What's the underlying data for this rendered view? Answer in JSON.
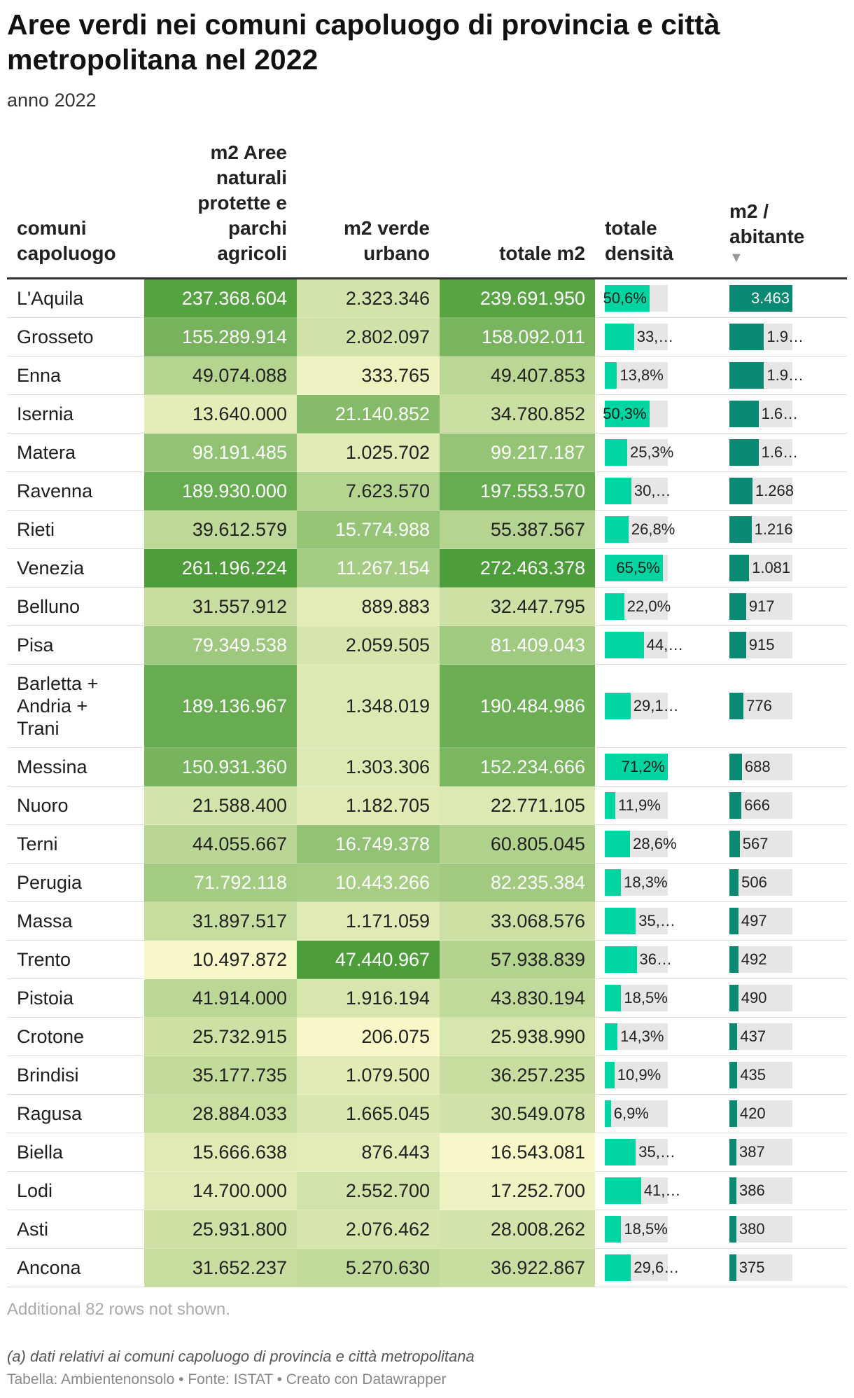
{
  "title": "Aree verdi nei comuni capoluogo di provincia e città metropolitana nel 2022",
  "subtitle": "anno 2022",
  "chart_data": {
    "type": "table",
    "columns": [
      {
        "key": "name",
        "label": "comuni capoluogo"
      },
      {
        "key": "aree",
        "label": "m2 Aree naturali protette e parchi agricoli"
      },
      {
        "key": "verde",
        "label": "m2 verde urbano"
      },
      {
        "key": "totale",
        "label": "totale m2"
      },
      {
        "key": "densita",
        "label": "totale densità"
      },
      {
        "key": "abitante",
        "label": "m2 / abitante",
        "sort": "▼"
      }
    ],
    "max_abitante": 3463,
    "max_densita": 100,
    "rows": [
      {
        "name": "L'Aquila",
        "aree": 237368604,
        "verde": 2323346,
        "totale": 239691950,
        "densita": 50.6,
        "densita_label": "50,6%",
        "abitante": 3463,
        "abitante_label": "3.463"
      },
      {
        "name": "Grosseto",
        "aree": 155289914,
        "verde": 2802097,
        "totale": 158092011,
        "densita": 33.0,
        "densita_label": "33,…",
        "abitante": 1900,
        "abitante_label": "1.9…"
      },
      {
        "name": "Enna",
        "aree": 49074088,
        "verde": 333765,
        "totale": 49407853,
        "densita": 13.8,
        "densita_label": "13,8%",
        "abitante": 1900,
        "abitante_label": "1.9…"
      },
      {
        "name": "Isernia",
        "aree": 13640000,
        "verde": 21140852,
        "totale": 34780852,
        "densita": 50.3,
        "densita_label": "50,3%",
        "abitante": 1600,
        "abitante_label": "1.6…"
      },
      {
        "name": "Matera",
        "aree": 98191485,
        "verde": 1025702,
        "totale": 99217187,
        "densita": 25.3,
        "densita_label": "25,3%",
        "abitante": 1600,
        "abitante_label": "1.6…"
      },
      {
        "name": "Ravenna",
        "aree": 189930000,
        "verde": 7623570,
        "totale": 197553570,
        "densita": 30.0,
        "densita_label": "30,…",
        "abitante": 1268,
        "abitante_label": "1.268"
      },
      {
        "name": "Rieti",
        "aree": 39612579,
        "verde": 15774988,
        "totale": 55387567,
        "densita": 26.8,
        "densita_label": "26,8%",
        "abitante": 1216,
        "abitante_label": "1.216"
      },
      {
        "name": "Venezia",
        "aree": 261196224,
        "verde": 11267154,
        "totale": 272463378,
        "densita": 65.5,
        "densita_label": "65,5%",
        "abitante": 1081,
        "abitante_label": "1.081"
      },
      {
        "name": "Belluno",
        "aree": 31557912,
        "verde": 889883,
        "totale": 32447795,
        "densita": 22.0,
        "densita_label": "22,0%",
        "abitante": 917,
        "abitante_label": "917"
      },
      {
        "name": "Pisa",
        "aree": 79349538,
        "verde": 2059505,
        "totale": 81409043,
        "densita": 44.0,
        "densita_label": "44,…",
        "abitante": 915,
        "abitante_label": "915"
      },
      {
        "name": "Barletta + Andria + Trani",
        "aree": 189136967,
        "verde": 1348019,
        "totale": 190484986,
        "densita": 29.1,
        "densita_label": "29,1…",
        "abitante": 776,
        "abitante_label": "776",
        "tall": true
      },
      {
        "name": "Messina",
        "aree": 150931360,
        "verde": 1303306,
        "totale": 152234666,
        "densita": 71.2,
        "densita_label": "71,2%",
        "abitante": 688,
        "abitante_label": "688"
      },
      {
        "name": "Nuoro",
        "aree": 21588400,
        "verde": 1182705,
        "totale": 22771105,
        "densita": 11.9,
        "densita_label": "11,9%",
        "abitante": 666,
        "abitante_label": "666"
      },
      {
        "name": "Terni",
        "aree": 44055667,
        "verde": 16749378,
        "totale": 60805045,
        "densita": 28.6,
        "densita_label": "28,6%",
        "abitante": 567,
        "abitante_label": "567"
      },
      {
        "name": "Perugia",
        "aree": 71792118,
        "verde": 10443266,
        "totale": 82235384,
        "densita": 18.3,
        "densita_label": "18,3%",
        "abitante": 506,
        "abitante_label": "506"
      },
      {
        "name": "Massa",
        "aree": 31897517,
        "verde": 1171059,
        "totale": 33068576,
        "densita": 35.0,
        "densita_label": "35,…",
        "abitante": 497,
        "abitante_label": "497"
      },
      {
        "name": "Trento",
        "aree": 10497872,
        "verde": 47440967,
        "totale": 57938839,
        "densita": 36.0,
        "densita_label": "36…",
        "abitante": 492,
        "abitante_label": "492"
      },
      {
        "name": "Pistoia",
        "aree": 41914000,
        "verde": 1916194,
        "totale": 43830194,
        "densita": 18.5,
        "densita_label": "18,5%",
        "abitante": 490,
        "abitante_label": "490"
      },
      {
        "name": "Crotone",
        "aree": 25732915,
        "verde": 206075,
        "totale": 25938990,
        "densita": 14.3,
        "densita_label": "14,3%",
        "abitante": 437,
        "abitante_label": "437"
      },
      {
        "name": "Brindisi",
        "aree": 35177735,
        "verde": 1079500,
        "totale": 36257235,
        "densita": 10.9,
        "densita_label": "10,9%",
        "abitante": 435,
        "abitante_label": "435"
      },
      {
        "name": "Ragusa",
        "aree": 28884033,
        "verde": 1665045,
        "totale": 30549078,
        "densita": 6.9,
        "densita_label": "6,9%",
        "abitante": 420,
        "abitante_label": "420"
      },
      {
        "name": "Biella",
        "aree": 15666638,
        "verde": 876443,
        "totale": 16543081,
        "densita": 35.0,
        "densita_label": "35,…",
        "abitante": 387,
        "abitante_label": "387"
      },
      {
        "name": "Lodi",
        "aree": 14700000,
        "verde": 2552700,
        "totale": 17252700,
        "densita": 41.0,
        "densita_label": "41,…",
        "abitante": 386,
        "abitante_label": "386"
      },
      {
        "name": "Asti",
        "aree": 25931800,
        "verde": 2076462,
        "totale": 28008262,
        "densita": 18.5,
        "densita_label": "18,5%",
        "abitante": 380,
        "abitante_label": "380"
      },
      {
        "name": "Ancona",
        "aree": 31652237,
        "verde": 5270630,
        "totale": 36922867,
        "densita": 29.6,
        "densita_label": "29,6…",
        "abitante": 375,
        "abitante_label": "375"
      }
    ]
  },
  "colors": {
    "heat_low": "#f7f7c8",
    "heat_high": "#4d9e3a",
    "bar_densita": "#00d4a0",
    "bar_abitante": "#0a8a72",
    "bar_track": "#e6e6e6"
  },
  "footer": {
    "more_rows": "Additional 82 rows not shown.",
    "note": "(a) dati relativi ai comuni capoluogo di provincia e città metropolitana",
    "credit": "Tabella: Ambientenonsolo • Fonte: ISTAT • Creato con Datawrapper"
  }
}
